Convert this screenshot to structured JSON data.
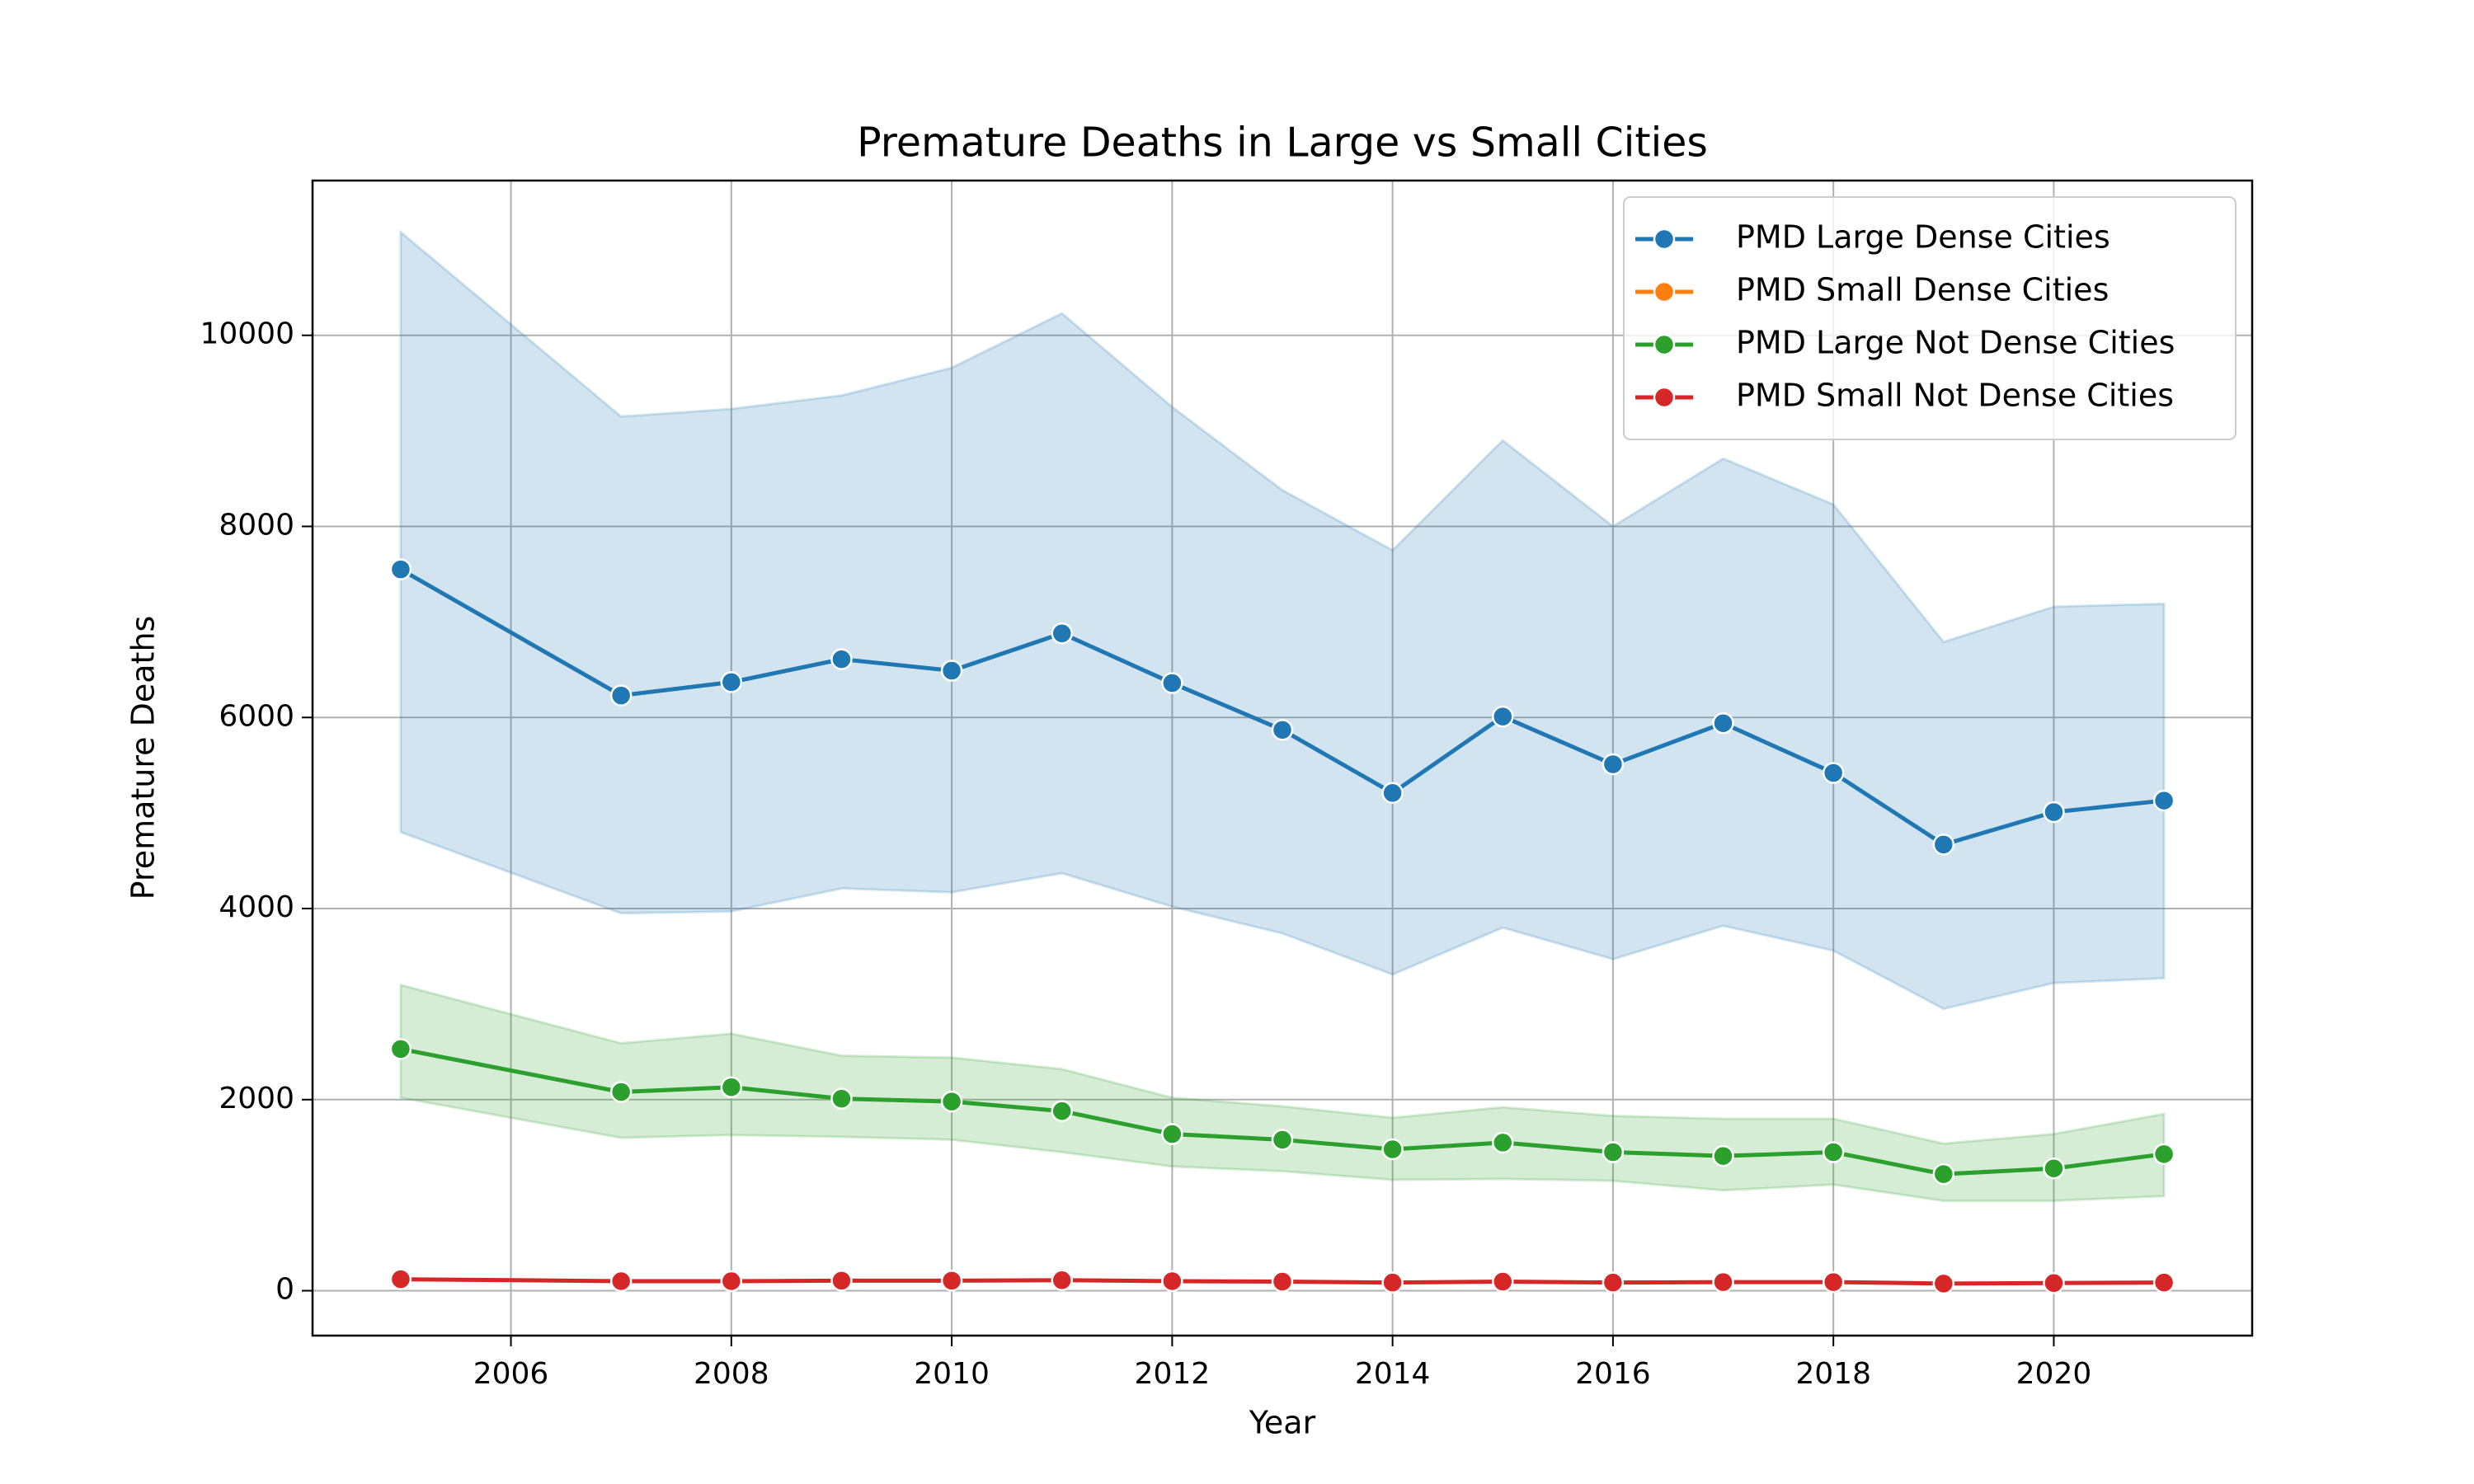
{
  "chart_data": {
    "type": "line",
    "title": "Premature Deaths in Large vs Small Cities",
    "x_label": "Year",
    "y_label": "Premature Deaths",
    "x": [
      2005,
      2007,
      2008,
      2009,
      2010,
      2011,
      2012,
      2013,
      2014,
      2015,
      2016,
      2017,
      2018,
      2019,
      2020,
      2021
    ],
    "series": [
      {
        "name": "PMD Large Dense Cities",
        "color": "#1f77b4",
        "values": [
          7550,
          6230,
          6370,
          6610,
          6490,
          6880,
          6360,
          5870,
          5210,
          6010,
          5510,
          5940,
          5420,
          4670,
          5010,
          5130
        ],
        "upper": [
          11080,
          9150,
          9230,
          9370,
          9660,
          10230,
          9250,
          8380,
          7750,
          8900,
          8000,
          8710,
          8230,
          6790,
          7160,
          7190
        ],
        "lower": [
          4800,
          3950,
          3970,
          4210,
          4170,
          4370,
          4020,
          3740,
          3310,
          3800,
          3470,
          3820,
          3560,
          2950,
          3220,
          3270
        ]
      },
      {
        "name": "PMD Small Dense Cities",
        "color": "#ff7f0e",
        "values": [
          null,
          null,
          null,
          null,
          null,
          null,
          null,
          null,
          null,
          null,
          null,
          null,
          null,
          null,
          null,
          null
        ]
      },
      {
        "name": "PMD Large Not Dense Cities",
        "color": "#2ca02c",
        "values": [
          2530,
          2080,
          2130,
          2010,
          1980,
          1880,
          1640,
          1580,
          1480,
          1550,
          1450,
          1410,
          1450,
          1220,
          1280,
          1430
        ],
        "upper": [
          3200,
          2590,
          2690,
          2460,
          2440,
          2320,
          2020,
          1930,
          1810,
          1920,
          1830,
          1800,
          1800,
          1540,
          1640,
          1850
        ],
        "lower": [
          2020,
          1600,
          1630,
          1610,
          1580,
          1450,
          1300,
          1250,
          1160,
          1170,
          1150,
          1050,
          1110,
          940,
          940,
          990
        ]
      },
      {
        "name": "PMD Small Not Dense Cities",
        "color": "#d62728",
        "values": [
          120,
          100,
          100,
          105,
          105,
          110,
          100,
          95,
          85,
          95,
          85,
          90,
          90,
          75,
          80,
          85
        ]
      }
    ],
    "xlim": [
      2004.2,
      2021.8
    ],
    "xticks": [
      2006,
      2008,
      2010,
      2012,
      2014,
      2016,
      2018,
      2020
    ],
    "ylim": [
      -470,
      11620
    ],
    "yticks": [
      0,
      2000,
      4000,
      6000,
      8000,
      10000
    ],
    "grid": true,
    "legend": "upper right"
  }
}
